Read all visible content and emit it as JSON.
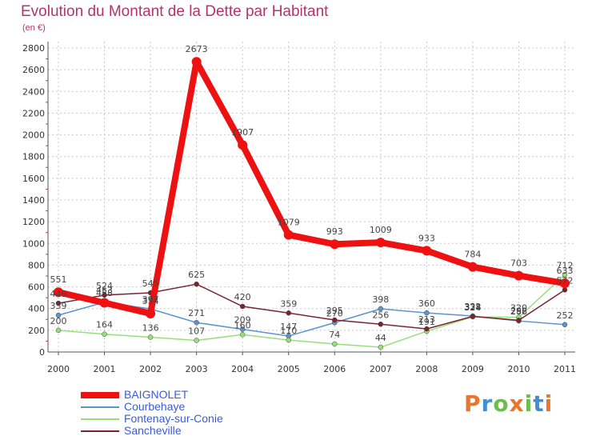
{
  "title": "Evolution du Montant de la Dette par Habitant",
  "subtitle": "(en €)",
  "logo": {
    "text": "Proxiti",
    "colors": [
      "#e8762b",
      "#3f8fd8",
      "#6bbf4a",
      "#e8762b",
      "#6bbf4a",
      "#3f8fd8",
      "#e8762b"
    ]
  },
  "chart_data": {
    "type": "line",
    "title": "Evolution du Montant de la Dette par Habitant",
    "subtitle": "(en €)",
    "x": [
      "2000",
      "2001",
      "2002",
      "2003",
      "2004",
      "2005",
      "2006",
      "2007",
      "2008",
      "2009",
      "2010",
      "2011"
    ],
    "ylim": [
      0,
      2800
    ],
    "yticks": [
      0,
      200,
      400,
      600,
      800,
      1000,
      1200,
      1400,
      1600,
      1800,
      2000,
      2200,
      2400,
      2600,
      2800
    ],
    "grid": true,
    "legend_position": "bottom-left",
    "series": [
      {
        "name": "BAIGNOLET",
        "color": "#ee1111",
        "width": 8,
        "values": [
          551,
          453,
          354,
          2673,
          1907,
          1079,
          993,
          1009,
          933,
          784,
          703,
          633
        ],
        "labels": [
          "551",
          "453",
          "354",
          "2673",
          "1907",
          "1079",
          "993",
          "1009",
          "933",
          "784",
          "703",
          "633"
        ]
      },
      {
        "name": "Courbehaye",
        "color": "#5b95cc",
        "width": 1.5,
        "values": [
          339,
          458,
          397,
          271,
          209,
          147,
          270,
          398,
          360,
          332,
          286,
          252
        ],
        "labels": [
          "339",
          "458",
          "397",
          "271",
          "209",
          "147",
          "270",
          "398",
          "360",
          "332",
          "286",
          "252"
        ]
      },
      {
        "name": "Fontenay-sur-Conie",
        "color": "#98df7a",
        "width": 1.5,
        "values": [
          200,
          164,
          136,
          107,
          160,
          110,
          74,
          44,
          191,
          324,
          320,
          712
        ],
        "labels": [
          "200",
          "164",
          "136",
          "107",
          "160",
          "110",
          "74",
          "44",
          "191",
          "324",
          "320",
          "712"
        ]
      },
      {
        "name": "Sancheville",
        "color": "#7b2430",
        "width": 1.5,
        "values": [
          449,
          524,
          545,
          625,
          420,
          359,
          295,
          256,
          213,
          328,
          292,
          572
        ],
        "labels": [
          "449",
          "524",
          "545",
          "625",
          "420",
          "359",
          "295",
          "256",
          "213",
          "328",
          "292",
          "572"
        ]
      }
    ]
  }
}
